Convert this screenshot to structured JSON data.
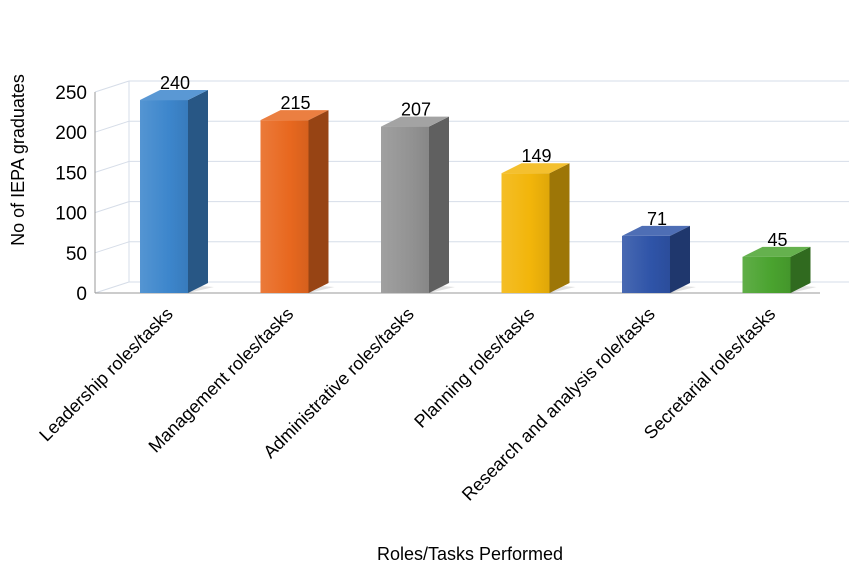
{
  "chart_data": {
    "type": "bar",
    "title": "",
    "xlabel": "Roles/Tasks Performed",
    "ylabel": "No of IEPA graduates",
    "categories": [
      "Leadership roles/tasks",
      "Management roles/tasks",
      "Administrative roles/tasks",
      "Planning roles/tasks",
      "Research and analysis role/tasks",
      "Secretarial roles/tasks"
    ],
    "values": [
      240,
      215,
      207,
      149,
      71,
      45
    ],
    "ylim": [
      0,
      250
    ],
    "yticks": [
      0,
      50,
      100,
      150,
      200,
      250
    ],
    "grid": true,
    "legend": "none",
    "colors": [
      "#3d86cc",
      "#e8681f",
      "#939393",
      "#f2b50a",
      "#2f54a8",
      "#4aa32f"
    ]
  }
}
